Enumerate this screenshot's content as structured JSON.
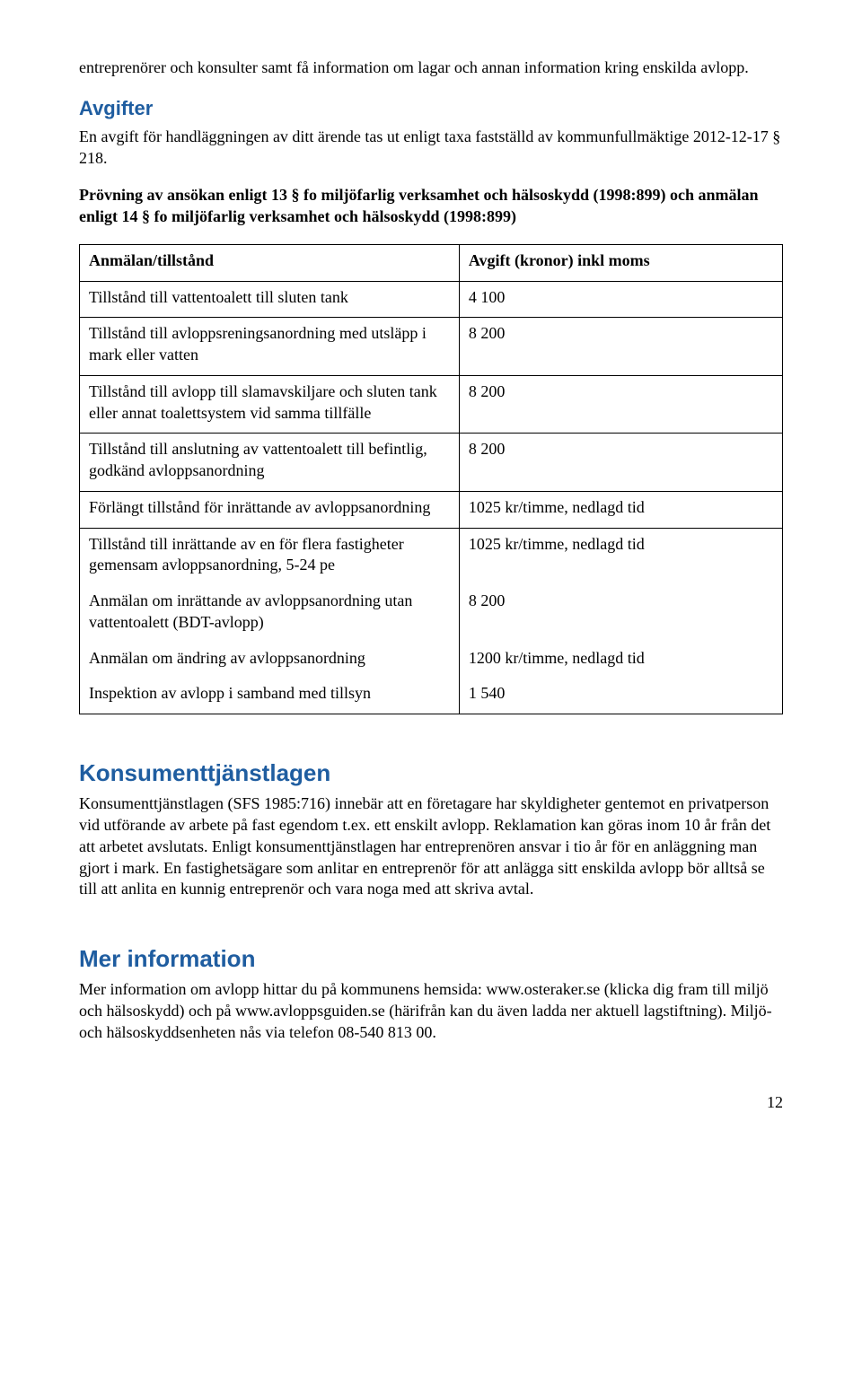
{
  "intro_top": "entreprenörer och konsulter samt få information om lagar och annan information kring enskilda avlopp.",
  "avgifter": {
    "title": "Avgifter",
    "body": "En avgift för handläggningen av ditt ärende tas ut enligt taxa fastställd av kommunfullmäktige 2012-12-17 § 218.",
    "provning": "Prövning av ansökan enligt 13 § fo miljöfarlig verksamhet och hälsoskydd (1998:899) och anmälan enligt 14 § fo miljöfarlig verksamhet och hälsoskydd (1998:899)"
  },
  "table": {
    "header_left": "Anmälan/tillstånd",
    "header_right": "Avgift (kronor) inkl moms",
    "rows": [
      {
        "l": "Tillstånd till vattentoalett till sluten tank",
        "r": "4 100"
      },
      {
        "l": "Tillstånd till avloppsreningsanordning med utsläpp i mark eller vatten",
        "r": "8 200"
      },
      {
        "l": "Tillstånd till avlopp till slamavskiljare och sluten tank eller annat toalettsystem vid samma tillfälle",
        "r": "8 200"
      },
      {
        "l": "Tillstånd till anslutning av vattentoalett till befintlig, godkänd avloppsanordning",
        "r": " 8 200"
      },
      {
        "l": "Förlängt tillstånd för inrättande av avloppsanordning",
        "r": "1025 kr/timme, nedlagd tid"
      },
      {
        "l": "Tillstånd till inrättande av en för flera fastigheter gemensam avloppsanordning, 5-24 pe",
        "r": "1025 kr/timme, nedlagd tid"
      },
      {
        "l": "Anmälan om inrättande av avloppsanordning utan vattentoalett (BDT-avlopp)",
        "r": "8 200"
      },
      {
        "l": "Anmälan om ändring av avloppsanordning",
        "r": "1200 kr/timme, nedlagd tid"
      },
      {
        "l": "Inspektion av avlopp i samband med tillsyn",
        "r": "1 540"
      }
    ]
  },
  "konsument": {
    "title": "Konsumenttjänstlagen",
    "body": "Konsumenttjänstlagen (SFS 1985:716) innebär att en företagare har skyldigheter gentemot en privatperson vid utförande av arbete på fast egendom t.ex. ett enskilt avlopp. Reklamation kan göras inom 10 år från det att arbetet avslutats. Enligt konsumenttjänstlagen har entreprenören ansvar i tio år för en anläggning man gjort i mark. En fastighetsägare som anlitar en entreprenör för att anlägga sitt enskilda avlopp bör alltså se till att anlita en kunnig entreprenör och vara noga med att skriva avtal."
  },
  "mer": {
    "title": "Mer information",
    "body": "Mer information om avlopp hittar du på kommunens hemsida: www.osteraker.se (klicka dig fram till miljö och hälsoskydd) och på www.avloppsguiden.se (härifrån kan du även ladda ner aktuell lagstiftning). Miljö- och hälsoskyddsenheten nås via telefon 08-540 813 00."
  },
  "page_number": "12"
}
